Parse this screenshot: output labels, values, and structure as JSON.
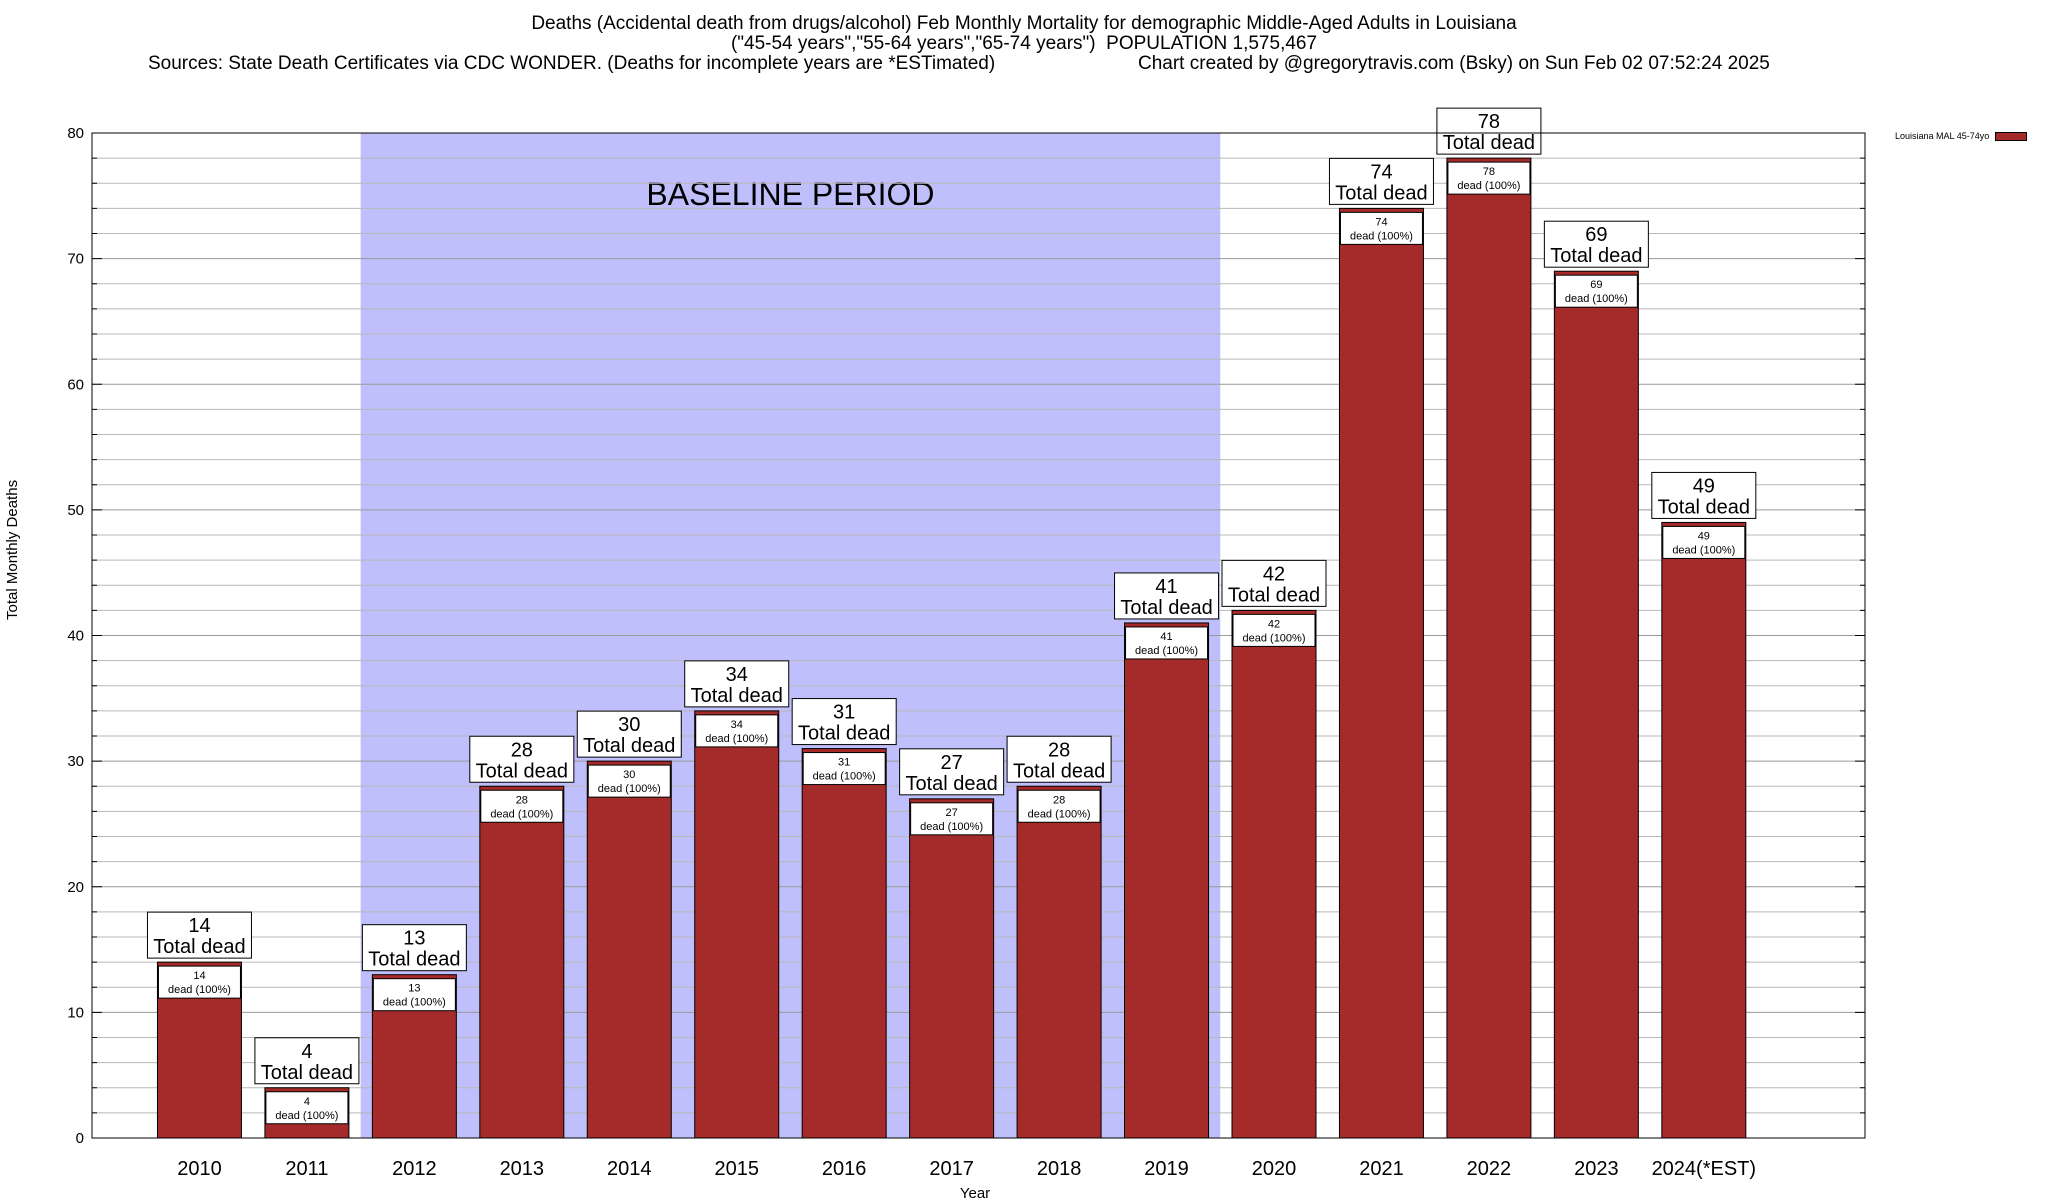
{
  "header": {
    "line1": "Deaths (Accidental death from drugs/alcohol) Feb Monthly Mortality for demographic Middle-Aged Adults in Louisiana",
    "line2": "(\"45-54 years\",\"55-64 years\",\"65-74 years\")  POPULATION 1,575,467",
    "sources": "Sources: State Death Certificates via CDC WONDER. (Deaths for incomplete years are *ESTimated)",
    "credit": "Chart created by @gregorytravis.com (Bsky) on Sun Feb 02 07:52:24 2025"
  },
  "legend": {
    "label": "Louisiana MAL 45-74yo"
  },
  "colors": {
    "bar": "#a52a2a",
    "baseline_band": "#bfbffb",
    "grid": "#b8b8b8"
  },
  "chart_data": {
    "type": "bar",
    "xlabel": "Year",
    "ylabel": "Total Monthly Deaths",
    "ylim": [
      0,
      80
    ],
    "yticks": [
      0,
      10,
      20,
      30,
      40,
      50,
      60,
      70,
      80
    ],
    "grid": true,
    "legend_position": "top-right",
    "categories": [
      "2010",
      "2011",
      "2012",
      "2013",
      "2014",
      "2015",
      "2016",
      "2017",
      "2018",
      "2019",
      "2020",
      "2021",
      "2022",
      "2023",
      "2024(*EST)"
    ],
    "series": [
      {
        "name": "Louisiana MAL 45-74yo",
        "values": [
          14,
          4,
          13,
          28,
          30,
          34,
          31,
          27,
          28,
          41,
          42,
          74,
          78,
          69,
          49
        ]
      }
    ],
    "top_label_suffix": "Total dead",
    "inner_label_suffix": "dead (100%)",
    "baseline_band": {
      "label": "BASELINE PERIOD",
      "from_category": "2012",
      "to_category": "2019"
    }
  }
}
